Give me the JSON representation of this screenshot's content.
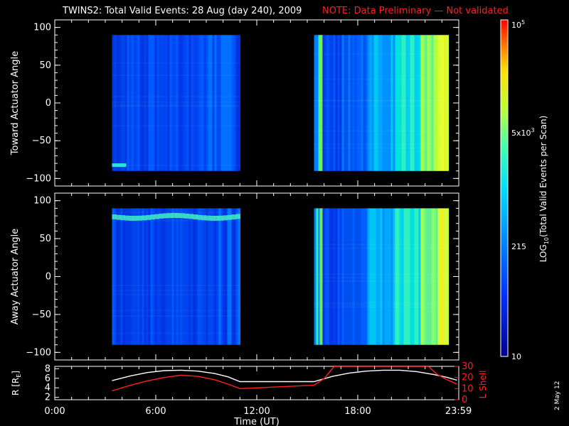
{
  "header": {
    "title": "TWINS2: Total Valid Events: 28 Aug (day 240), 2009",
    "note": "NOTE: Data Preliminary — Not validated",
    "note_color": "#ff2020"
  },
  "footer": {
    "date_stamp": "2 May 12"
  },
  "chart_data": [
    {
      "type": "heatmap",
      "name": "toward",
      "ylabel": "Toward Actuator Angle",
      "ylim": [
        -110,
        110
      ],
      "yticks": [
        -100,
        -50,
        0,
        50,
        100
      ],
      "ytick_labels": [
        "−100",
        "−50",
        "0",
        "50",
        "100"
      ],
      "xlim_hours": [
        0,
        24
      ],
      "segments": [
        {
          "start_hour": 3.4,
          "end_hour": 11.0,
          "angle_range": [
            -90,
            90
          ]
        },
        {
          "start_hour": 15.4,
          "end_hour": 23.3,
          "angle_range": [
            -90,
            90
          ]
        }
      ]
    },
    {
      "type": "heatmap",
      "name": "away",
      "ylabel": "Away Actuator Angle",
      "ylim": [
        -110,
        110
      ],
      "yticks": [
        -100,
        -50,
        0,
        50,
        100
      ],
      "ytick_labels": [
        "−100",
        "−50",
        "0",
        "50",
        "100"
      ],
      "xlim_hours": [
        0,
        24
      ],
      "segments": [
        {
          "start_hour": 3.4,
          "end_hour": 11.0,
          "angle_range": [
            -90,
            90
          ]
        },
        {
          "start_hour": 15.4,
          "end_hour": 23.3,
          "angle_range": [
            -90,
            90
          ]
        }
      ]
    },
    {
      "type": "line",
      "name": "orbit",
      "xlabel": "Time (UT)",
      "xticks_hours": [
        0,
        6,
        12,
        18,
        23.983
      ],
      "xtick_labels": [
        "0:00",
        "6:00",
        "12:00",
        "18:00",
        "23:59"
      ],
      "left_axis": {
        "label_prefix": "R [R",
        "label_sub": "E",
        "label_suffix": "]",
        "ylim": [
          1.5,
          8.5
        ],
        "yticks": [
          2,
          4,
          6,
          8
        ],
        "ytick_labels": [
          "2",
          "4",
          "6",
          "8"
        ]
      },
      "right_axis": {
        "label": "L Shell",
        "ylim": [
          0,
          30
        ],
        "yticks": [
          0,
          10,
          20,
          30
        ],
        "ytick_labels": [
          "0",
          "10",
          "20",
          "30"
        ],
        "color": "#ff2020"
      },
      "series": [
        {
          "name": "R",
          "axis": "left",
          "color": "#ffffff",
          "x": [
            3.4,
            4.5,
            5.5,
            6.5,
            7.5,
            8.5,
            9.5,
            10.3,
            11.0,
            15.4,
            16.5,
            17.5,
            18.5,
            19.5,
            20.5,
            21.5,
            22.5,
            23.3,
            23.9
          ],
          "y": [
            5.5,
            6.5,
            7.2,
            7.6,
            7.7,
            7.5,
            7.0,
            6.3,
            5.3,
            5.3,
            6.4,
            7.1,
            7.5,
            7.7,
            7.7,
            7.4,
            6.8,
            6.2,
            5.6
          ]
        },
        {
          "name": "L Shell",
          "axis": "right",
          "color": "#ff2020",
          "x": [
            3.4,
            4.5,
            5.5,
            6.5,
            7.5,
            8.5,
            9.5,
            10.3,
            11.0,
            15.4,
            16.0,
            16.6,
            22.2,
            22.7,
            23.3,
            23.9
          ],
          "y": [
            8,
            13,
            17,
            20,
            22,
            21,
            18,
            14,
            10,
            13,
            19,
            30,
            30,
            23,
            18,
            14
          ]
        }
      ]
    }
  ],
  "colorbar": {
    "label_prefix": "LOG",
    "label_sub": "10",
    "label_suffix": "(Total Valid Events per Scan)",
    "tick_labels": [
      "10",
      "215",
      "5x10",
      "10"
    ],
    "tick_exponents": [
      "",
      "",
      "3",
      "5"
    ],
    "range_log10": [
      1,
      5
    ]
  }
}
